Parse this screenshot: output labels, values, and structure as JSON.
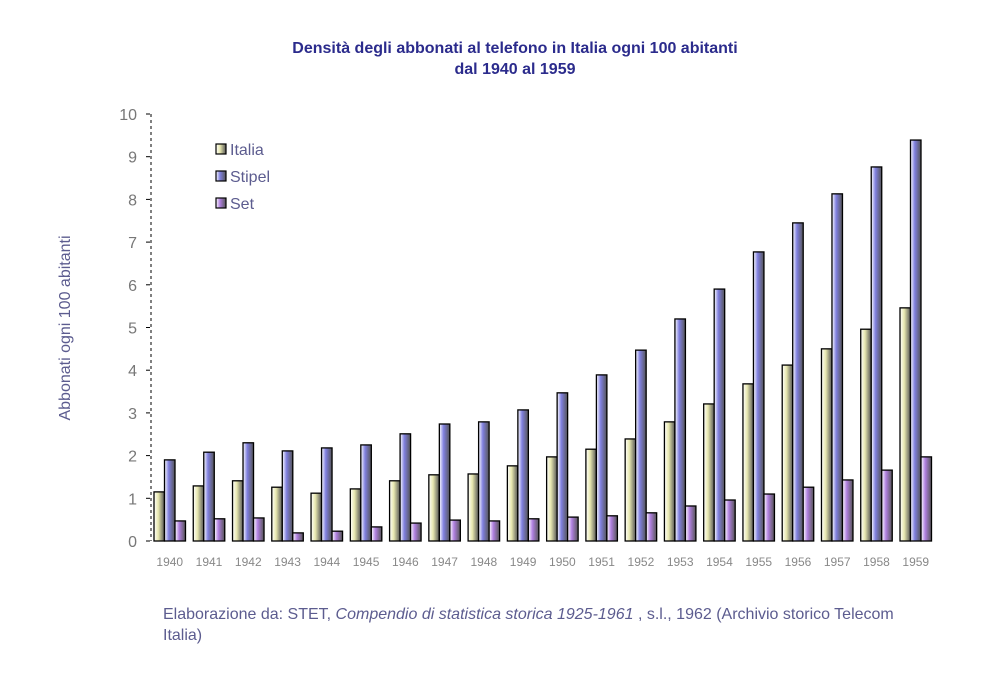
{
  "chart_data": {
    "type": "bar",
    "title": [
      "Densità degli abbonati al telefono in Italia ogni 100 abitanti",
      "dal 1940 al 1959"
    ],
    "ylabel": "Abbonati ogni 100 abitanti",
    "xlabel": "",
    "ylim": [
      0,
      10
    ],
    "yticks": [
      0,
      1,
      2,
      3,
      4,
      5,
      6,
      7,
      8,
      9,
      10
    ],
    "grid": false,
    "legend_placement": "top-left",
    "categories": [
      "1940",
      "1941",
      "1942",
      "1943",
      "1944",
      "1945",
      "1946",
      "1947",
      "1948",
      "1949",
      "1950",
      "1951",
      "1952",
      "1953",
      "1954",
      "1955",
      "1956",
      "1957",
      "1958",
      "1959"
    ],
    "series": [
      {
        "name": "Italia",
        "color": "#e8e8b0",
        "values": [
          1.15,
          1.29,
          1.41,
          1.26,
          1.12,
          1.22,
          1.41,
          1.55,
          1.57,
          1.76,
          1.97,
          2.15,
          2.39,
          2.79,
          3.21,
          3.68,
          4.12,
          4.5,
          4.96,
          5.46
        ]
      },
      {
        "name": "Stipel",
        "color": "#8080e0",
        "values": [
          1.9,
          2.08,
          2.3,
          2.11,
          2.18,
          2.25,
          2.51,
          2.74,
          2.79,
          3.07,
          3.47,
          3.89,
          4.47,
          5.2,
          5.9,
          6.77,
          7.45,
          8.13,
          8.76,
          9.39
        ]
      },
      {
        "name": "Set",
        "color": "#b080e0",
        "values": [
          0.47,
          0.52,
          0.54,
          0.19,
          0.23,
          0.33,
          0.42,
          0.49,
          0.47,
          0.52,
          0.56,
          0.59,
          0.66,
          0.82,
          0.96,
          1.1,
          1.26,
          1.43,
          1.66,
          1.97
        ]
      }
    ]
  },
  "source": {
    "prefix": "Elaborazione da: STET, ",
    "work": "Compendio di statistica storica 1925-1961",
    "suffix": " , s.l., 1962 (Archivio storico Telecom Italia)"
  }
}
